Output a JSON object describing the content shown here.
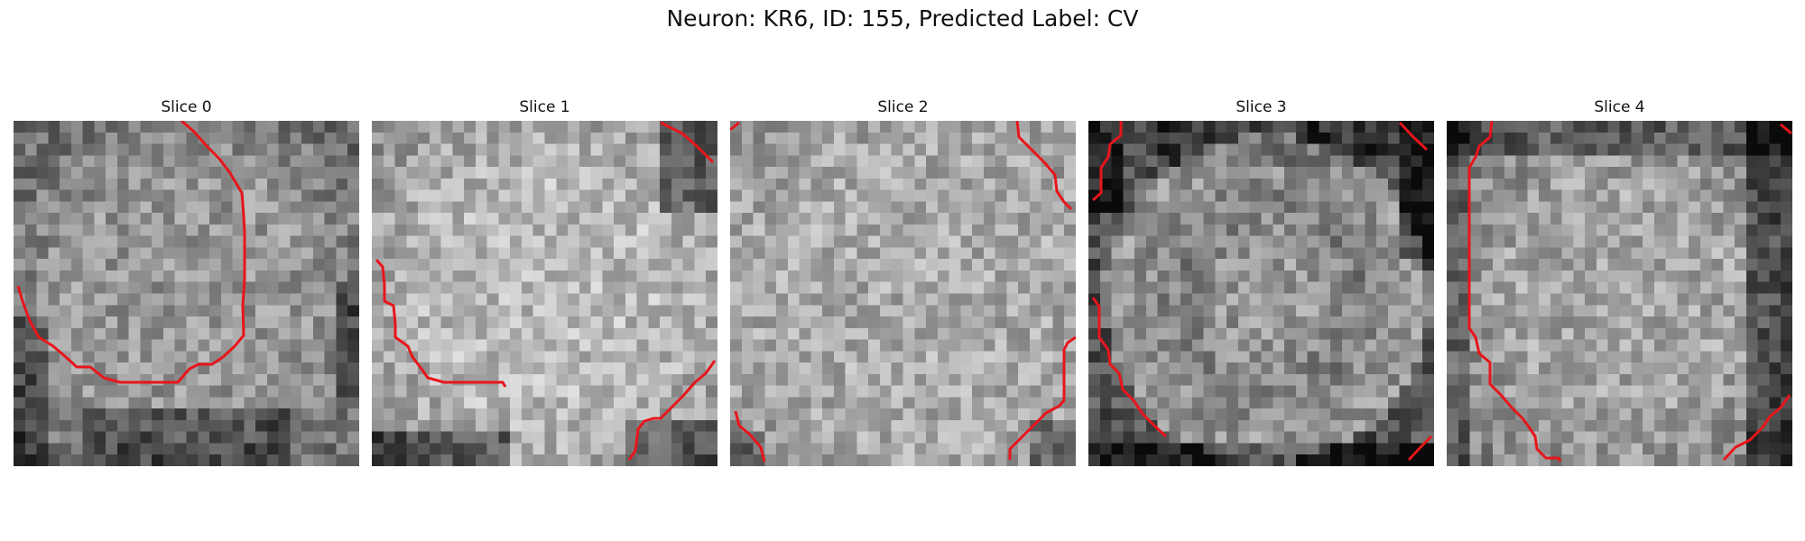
{
  "figure": {
    "title": "Neuron: KR6, ID: 155, Predicted Label: CV"
  },
  "panels": [
    {
      "title": "Slice 0",
      "seed": 11,
      "pattern": "bright-right-dark-bottom"
    },
    {
      "title": "Slice 1",
      "seed": 23,
      "pattern": "bright-center"
    },
    {
      "title": "Slice 2",
      "seed": 37,
      "pattern": "bright-uniform"
    },
    {
      "title": "Slice 3",
      "seed": 41,
      "pattern": "ring-dark-edges"
    },
    {
      "title": "Slice 4",
      "seed": 59,
      "pattern": "bright-center-dark-right"
    }
  ],
  "contour_color": "#e8151b"
}
